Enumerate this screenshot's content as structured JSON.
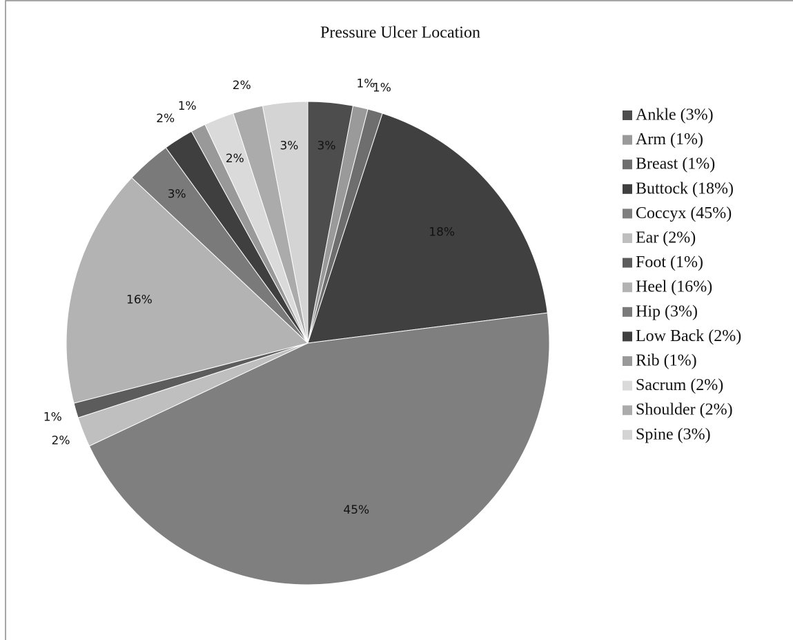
{
  "chart_data": {
    "type": "pie",
    "title": "Pressure Ulcer Location",
    "categories": [
      "Ankle (3%)",
      "Arm (1%)",
      "Breast (1%)",
      "Buttock (18%)",
      "Coccyx (45%)",
      "Ear (2%)",
      "Foot (1%)",
      "Heel (16%)",
      "Hip (3%)",
      "Low Back (2%)",
      "Rib (1%)",
      "Sacrum (2%)",
      "Shoulder (2%)",
      "Spine (3%)"
    ],
    "values": [
      3,
      1,
      1,
      18,
      45,
      2,
      1,
      16,
      3,
      2,
      1,
      2,
      2,
      3
    ],
    "value_labels": [
      "3%",
      "1%",
      "1%",
      "18%",
      "45%",
      "2%",
      "1%",
      "16%",
      "3%",
      "2%",
      "1%",
      "2%",
      "2%",
      "3%"
    ],
    "colors": [
      "#4d4d4d",
      "#9a9a9a",
      "#6e6e6e",
      "#404040",
      "#7f7f7f",
      "#bfbfbf",
      "#5c5c5c",
      "#b3b3b3",
      "#7a7a7a",
      "#3f3f3f",
      "#999999",
      "#dadada",
      "#ababab",
      "#d4d4d4"
    ],
    "legend": "right"
  }
}
